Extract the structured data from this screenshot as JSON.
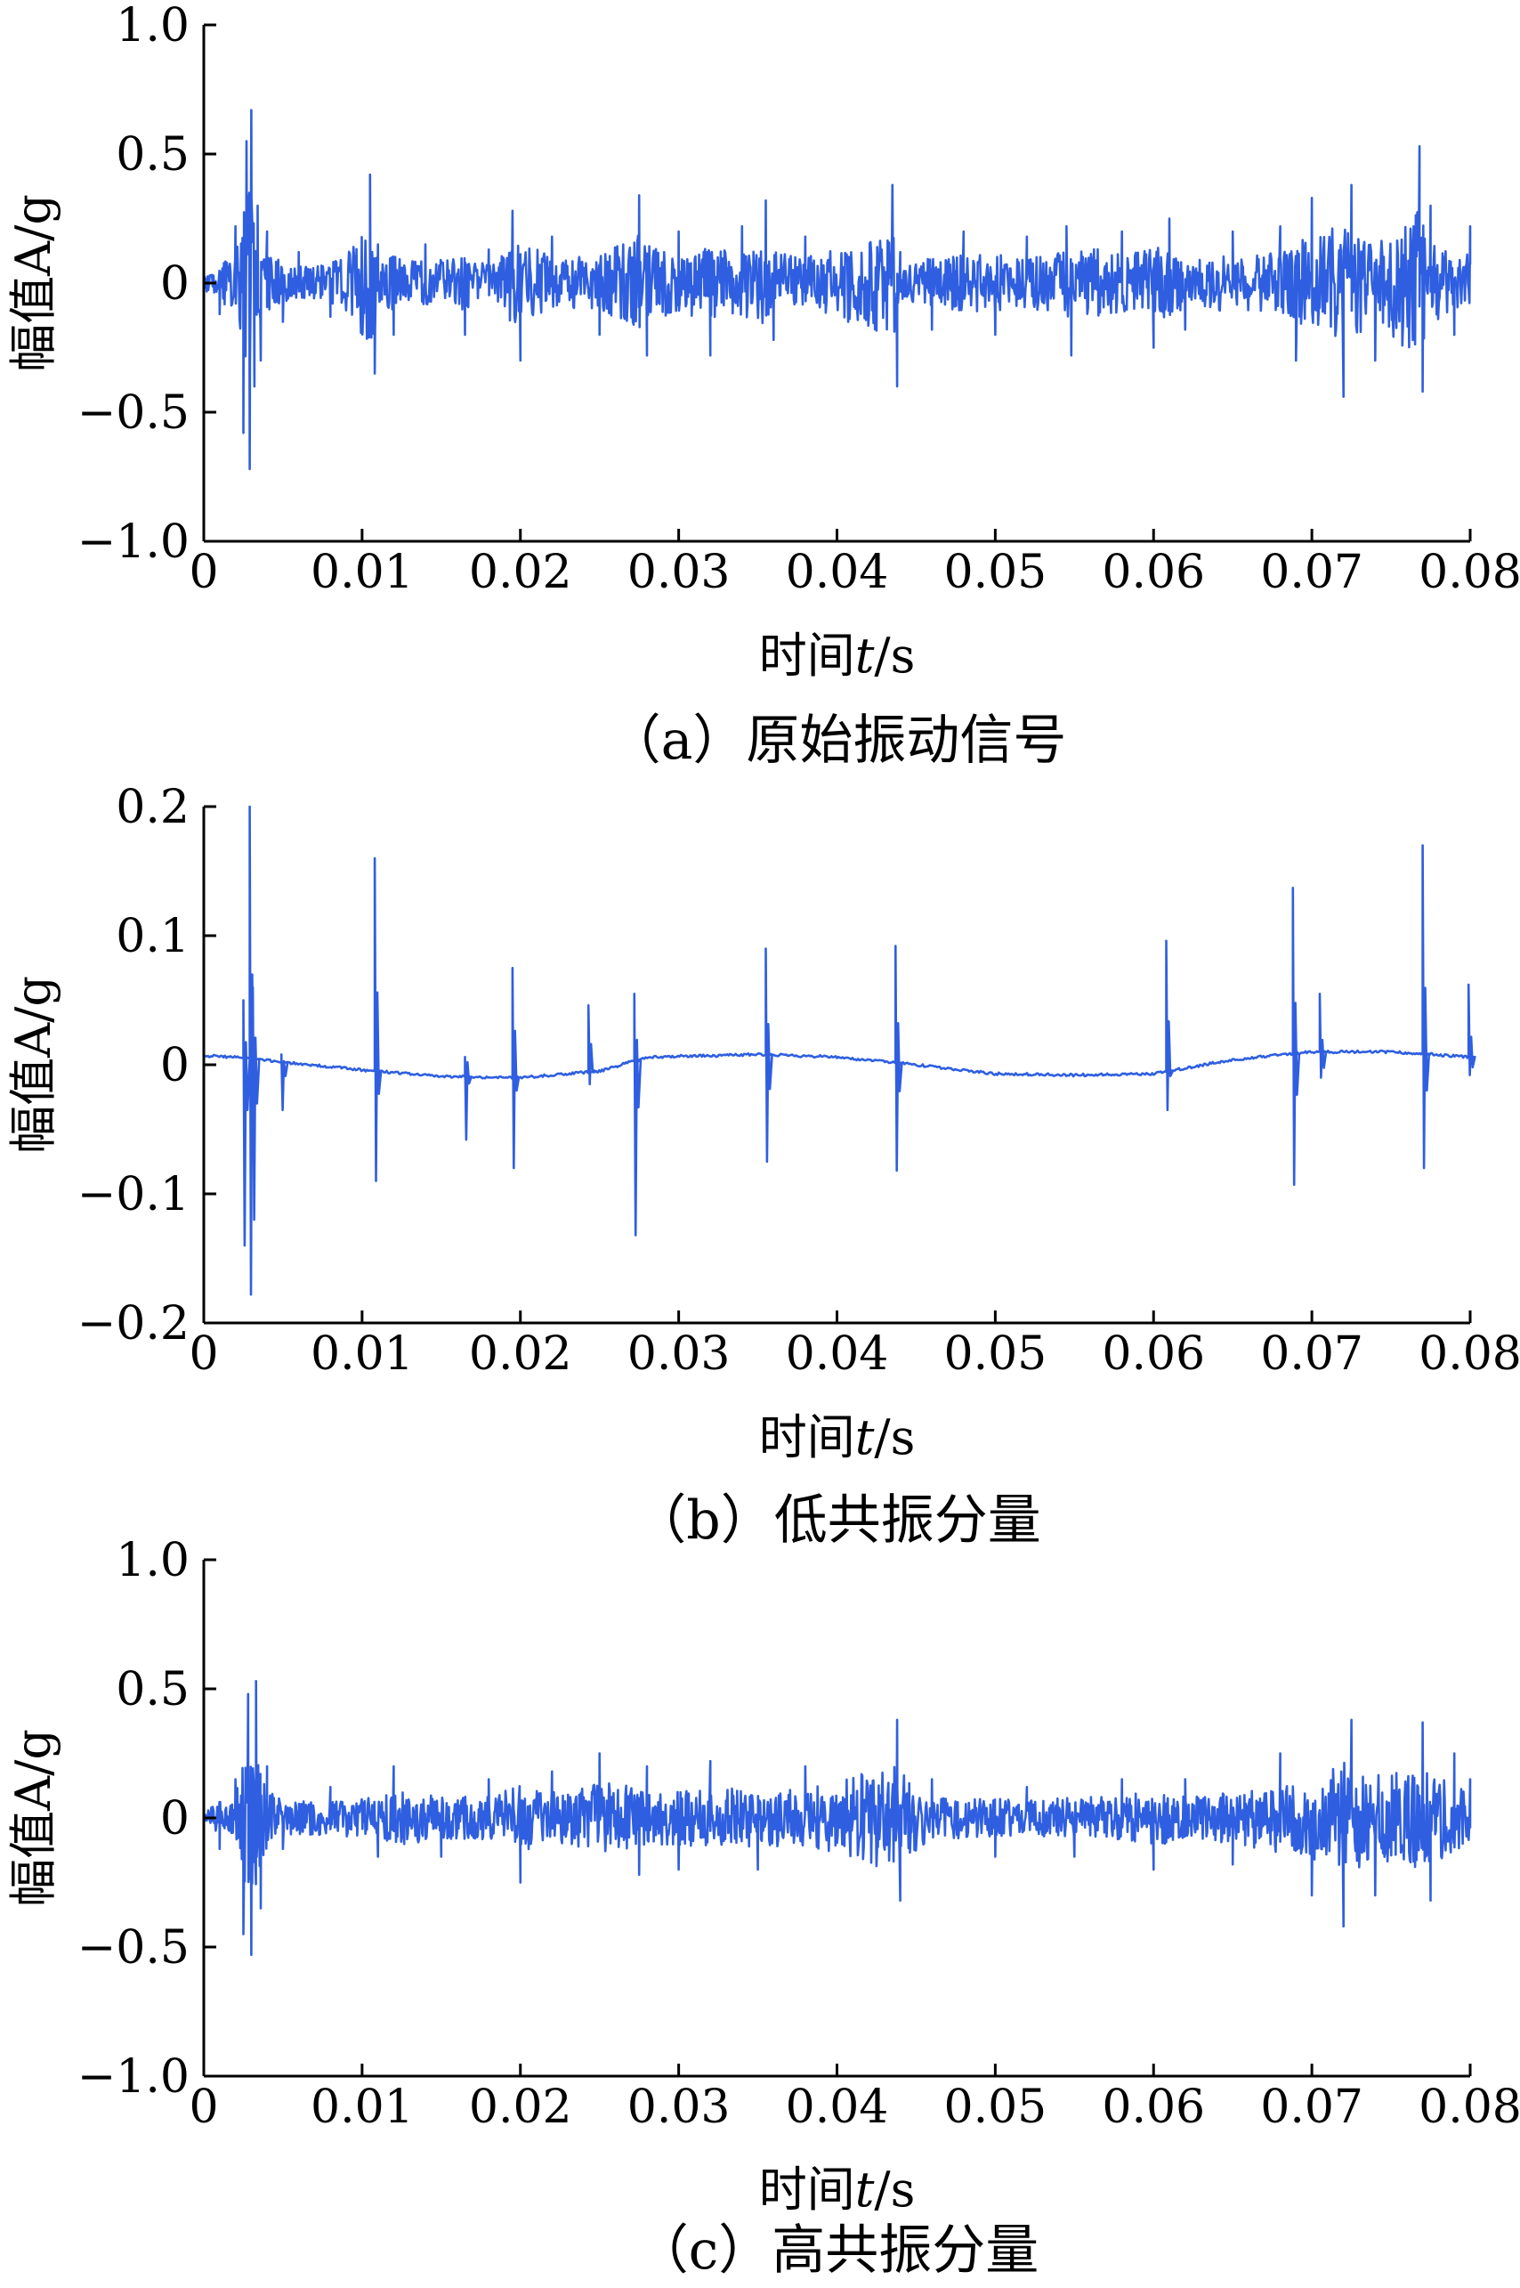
{
  "chart_data": [
    {
      "type": "line",
      "caption": "（a）原始振动信号",
      "ylabel": "幅值A/g",
      "xlabel_main": "时间",
      "xlabel_var": "t",
      "xlabel_unit": "/s",
      "xlim": [
        0,
        0.08
      ],
      "ylim": [
        -1.0,
        1.0
      ],
      "xticks": [
        0,
        0.01,
        0.02,
        0.03,
        0.04,
        0.05,
        0.06,
        0.07,
        0.08
      ],
      "xtick_labels": [
        "0",
        "0.01",
        "0.02",
        "0.03",
        "0.04",
        "0.05",
        "0.06",
        "0.07",
        "0.08"
      ],
      "yticks": [
        1.0,
        0.5,
        0,
        -0.5,
        -1.0
      ],
      "ytick_labels": [
        "1.0",
        "0.5",
        "0",
        "−0.5",
        "−1.0"
      ],
      "line_color": "#2f5fe0",
      "grid": false,
      "series": [
        {
          "x": [
            0,
            0.001,
            0.002,
            0.0025,
            0.0027,
            0.0029,
            0.003,
            0.0032,
            0.0034,
            0.0036,
            0.004,
            0.005,
            0.006,
            0.008,
            0.0105,
            0.0108,
            0.011,
            0.012,
            0.014,
            0.0165,
            0.018,
            0.0195,
            0.02,
            0.022,
            0.025,
            0.0275,
            0.028,
            0.03,
            0.032,
            0.034,
            0.0355,
            0.036,
            0.038,
            0.0435,
            0.0438,
            0.044,
            0.046,
            0.048,
            0.05,
            0.052,
            0.0545,
            0.0548,
            0.058,
            0.06,
            0.061,
            0.062,
            0.065,
            0.068,
            0.069,
            0.07,
            0.072,
            0.0725,
            0.074,
            0.0768,
            0.077,
            0.0775,
            0.079,
            0.08
          ],
          "y": [
            0.05,
            -0.12,
            0.22,
            -0.58,
            0.55,
            -0.72,
            0.67,
            -0.4,
            0.3,
            -0.3,
            0.2,
            -0.15,
            0.12,
            -0.13,
            0.42,
            -0.35,
            0.15,
            -0.2,
            0.15,
            -0.2,
            0.13,
            0.28,
            -0.3,
            0.18,
            -0.2,
            0.34,
            -0.28,
            0.2,
            -0.28,
            0.22,
            0.32,
            -0.22,
            0.18,
            0.38,
            -0.4,
            0.12,
            -0.18,
            0.2,
            -0.2,
            0.18,
            0.22,
            -0.28,
            0.2,
            -0.25,
            0.25,
            -0.18,
            0.2,
            0.22,
            -0.3,
            0.33,
            -0.44,
            0.38,
            -0.3,
            0.53,
            -0.42,
            0.3,
            -0.2,
            0.22
          ]
        }
      ]
    },
    {
      "type": "line",
      "caption": "（b）低共振分量",
      "ylabel": "幅值A/g",
      "xlabel_main": "时间",
      "xlabel_var": "t",
      "xlabel_unit": "/s",
      "xlim": [
        0,
        0.08
      ],
      "ylim": [
        -0.2,
        0.2
      ],
      "xticks": [
        0,
        0.01,
        0.02,
        0.03,
        0.04,
        0.05,
        0.06,
        0.07,
        0.08
      ],
      "xtick_labels": [
        "0",
        "0.01",
        "0.02",
        "0.03",
        "0.04",
        "0.05",
        "0.06",
        "0.07",
        "0.08"
      ],
      "yticks": [
        0.2,
        0.1,
        0,
        -0.1,
        -0.2
      ],
      "ytick_labels": [
        "0.2",
        "0.1",
        "0",
        "−0.1",
        "−0.2"
      ],
      "line_color": "#2f5fe0",
      "grid": false,
      "series": [
        {
          "baseline_x": [
            0,
            0.002,
            0.005,
            0.01,
            0.015,
            0.02,
            0.025,
            0.028,
            0.035,
            0.04,
            0.045,
            0.05,
            0.055,
            0.06,
            0.065,
            0.07,
            0.075,
            0.08
          ],
          "baseline_y": [
            0.007,
            0.006,
            0.002,
            -0.004,
            -0.009,
            -0.01,
            -0.005,
            0.006,
            0.008,
            0.006,
            0.0,
            -0.007,
            -0.008,
            -0.007,
            0.004,
            0.01,
            0.01,
            0.006
          ],
          "spikes": [
            {
              "x": 0.0025,
              "max": 0.05,
              "min": -0.14
            },
            {
              "x": 0.0029,
              "max": 0.2,
              "min": -0.178
            },
            {
              "x": 0.0031,
              "max": 0.06,
              "min": -0.12
            },
            {
              "x": 0.0049,
              "max": 0.008,
              "min": -0.035
            },
            {
              "x": 0.0108,
              "max": 0.16,
              "min": -0.09
            },
            {
              "x": 0.0165,
              "max": 0.006,
              "min": -0.058
            },
            {
              "x": 0.0195,
              "max": 0.075,
              "min": -0.08
            },
            {
              "x": 0.0243,
              "max": 0.046,
              "min": -0.015
            },
            {
              "x": 0.0272,
              "max": 0.055,
              "min": -0.132
            },
            {
              "x": 0.0355,
              "max": 0.09,
              "min": -0.075
            },
            {
              "x": 0.0437,
              "max": 0.092,
              "min": -0.082
            },
            {
              "x": 0.0608,
              "max": 0.096,
              "min": -0.035
            },
            {
              "x": 0.0688,
              "max": 0.137,
              "min": -0.093
            },
            {
              "x": 0.0705,
              "max": 0.055,
              "min": -0.01
            },
            {
              "x": 0.077,
              "max": 0.17,
              "min": -0.08
            },
            {
              "x": 0.0799,
              "max": 0.062,
              "min": -0.008
            }
          ]
        }
      ]
    },
    {
      "type": "line",
      "caption": "（c）高共振分量",
      "ylabel": "幅值A/g",
      "xlabel_main": "时间",
      "xlabel_var": "t",
      "xlabel_unit": "/s",
      "xlim": [
        0,
        0.08
      ],
      "ylim": [
        -1.0,
        1.0
      ],
      "xticks": [
        0,
        0.01,
        0.02,
        0.03,
        0.04,
        0.05,
        0.06,
        0.07,
        0.08
      ],
      "xtick_labels": [
        "0",
        "0.01",
        "0.02",
        "0.03",
        "0.04",
        "0.05",
        "0.06",
        "0.07",
        "0.08"
      ],
      "yticks": [
        1.0,
        0.5,
        0,
        -0.5,
        -1.0
      ],
      "ytick_labels": [
        "1.0",
        "0.5",
        "0",
        "−0.5",
        "−1.0"
      ],
      "line_color": "#2f5fe0",
      "grid": false,
      "series": [
        {
          "x": [
            0,
            0.001,
            0.002,
            0.0025,
            0.0028,
            0.003,
            0.0033,
            0.0036,
            0.004,
            0.005,
            0.008,
            0.011,
            0.012,
            0.015,
            0.018,
            0.02,
            0.022,
            0.025,
            0.0275,
            0.028,
            0.03,
            0.032,
            0.035,
            0.038,
            0.0438,
            0.044,
            0.046,
            0.05,
            0.052,
            0.055,
            0.058,
            0.06,
            0.062,
            0.065,
            0.068,
            0.07,
            0.072,
            0.0725,
            0.074,
            0.077,
            0.0775,
            0.079,
            0.08
          ],
          "y": [
            0.05,
            -0.12,
            0.15,
            -0.45,
            0.48,
            -0.53,
            0.53,
            -0.35,
            0.2,
            -0.12,
            0.12,
            -0.15,
            0.2,
            -0.15,
            0.15,
            -0.25,
            0.18,
            0.25,
            -0.22,
            0.2,
            -0.2,
            0.22,
            -0.2,
            0.2,
            0.38,
            -0.32,
            0.15,
            -0.15,
            0.12,
            -0.15,
            0.15,
            -0.2,
            0.15,
            -0.18,
            0.25,
            -0.3,
            -0.42,
            0.38,
            -0.3,
            0.37,
            -0.32,
            0.25,
            0.15
          ]
        }
      ]
    }
  ]
}
